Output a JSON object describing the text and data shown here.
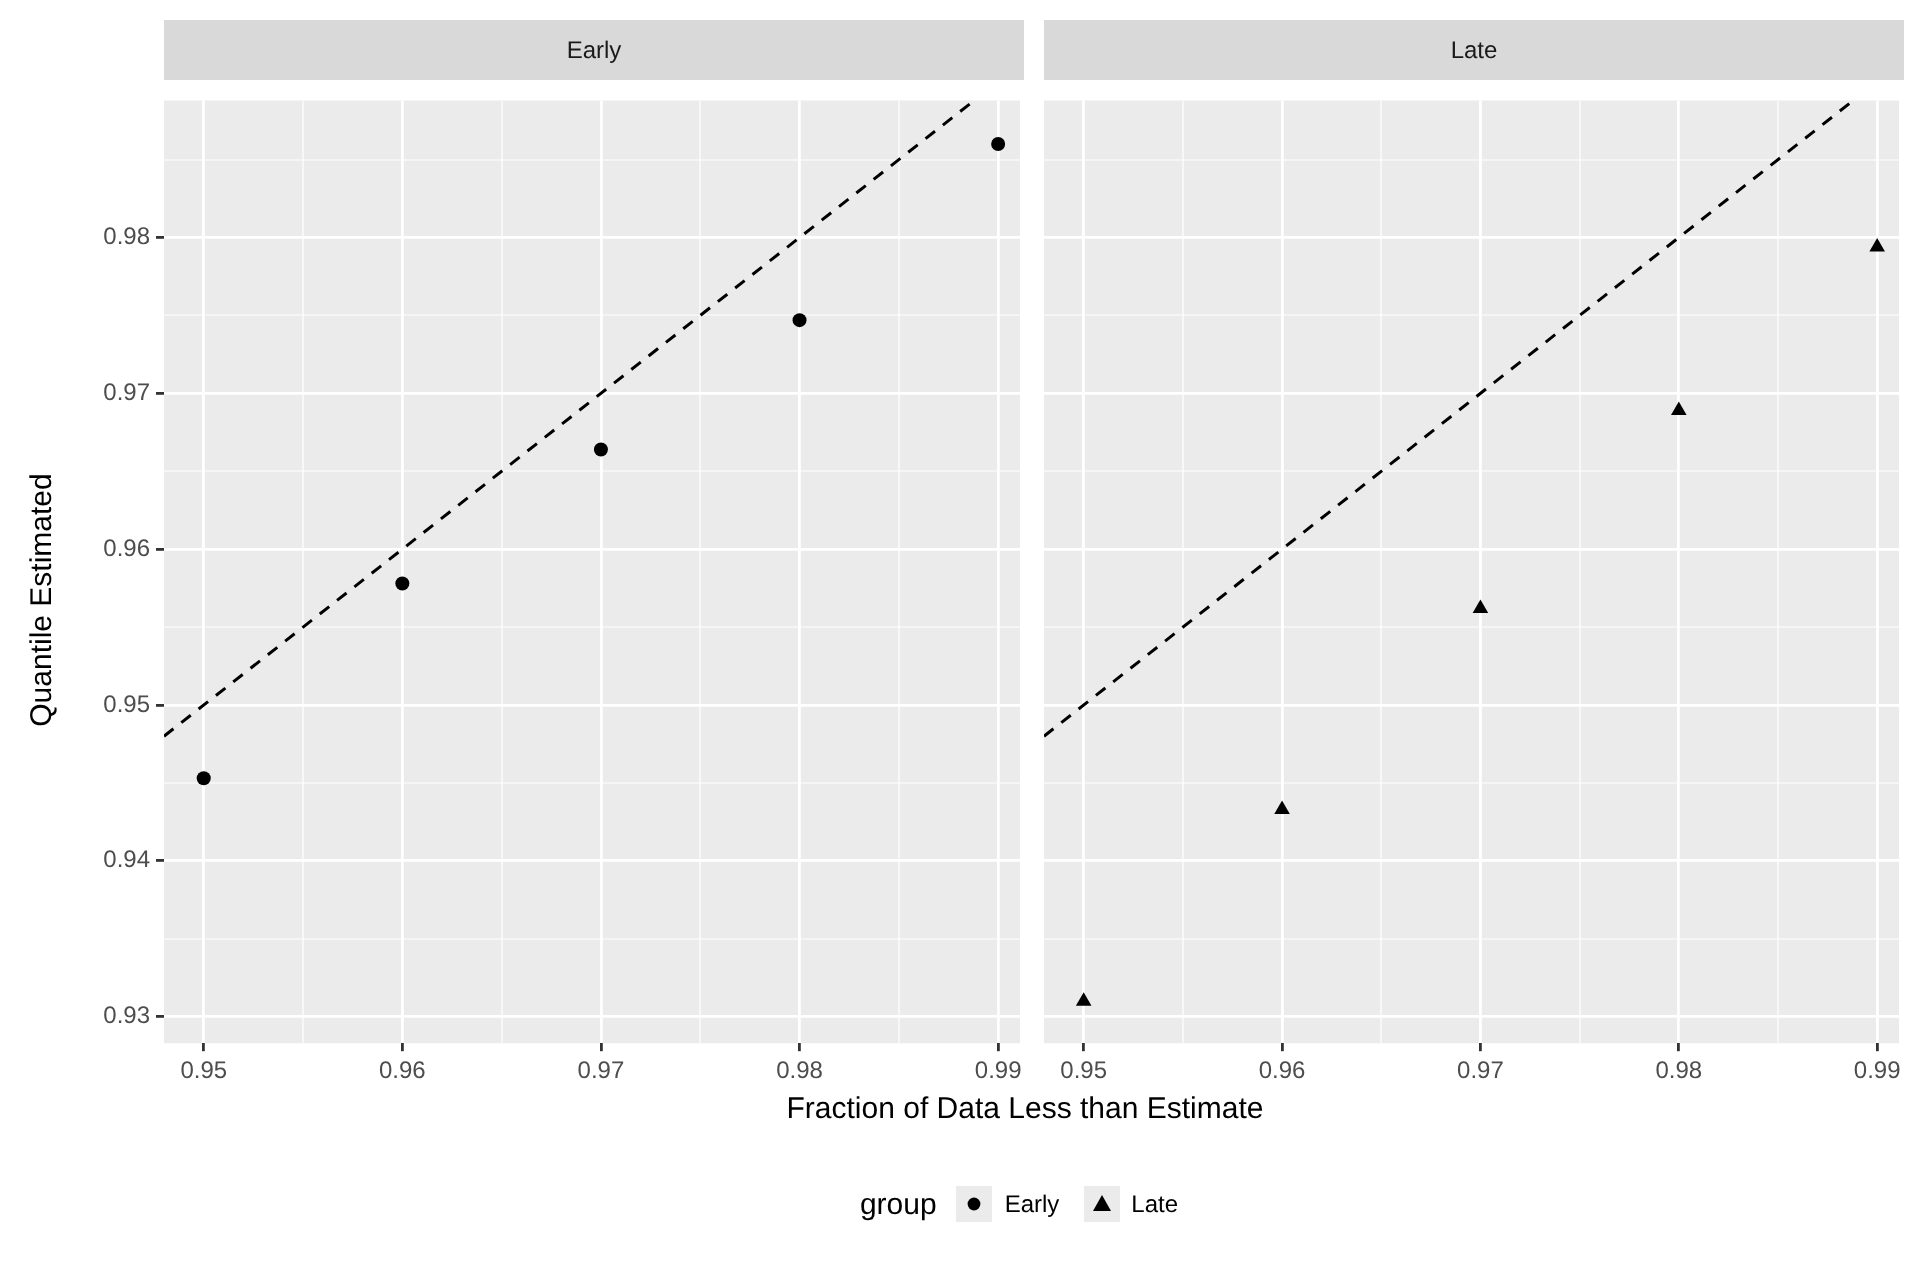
{
  "chart_data": [
    {
      "type": "scatter",
      "title": "Early",
      "xlabel": "Fraction of Data Less than Estimate",
      "ylabel": "Quantile Estimated",
      "legend": "bottom",
      "legend_title": "group",
      "grid": true,
      "xlim": [
        0.948,
        0.9911
      ],
      "ylim": [
        0.9283,
        0.9888
      ],
      "xticks": [
        0.95,
        {
          "value": 0.955,
          "label": null
        },
        0.96,
        {
          "value": 0.965,
          "label": null
        },
        0.97,
        {
          "value": 0.975,
          "label": null
        },
        0.98,
        {
          "value": 0.985,
          "label": null
        },
        0.99
      ],
      "yticks": [
        0.93,
        {
          "value": 0.935,
          "label": null
        },
        0.94,
        {
          "value": 0.945,
          "label": null
        },
        0.95,
        {
          "value": 0.955,
          "label": null
        },
        0.96,
        {
          "value": 0.965,
          "label": null
        },
        0.97,
        {
          "value": 0.975,
          "label": null
        },
        0.98,
        {
          "value": 0.985,
          "label": null
        }
      ],
      "series": [
        {
          "name": "Early",
          "type": "scatter",
          "marker": "circle",
          "color": "#000000",
          "x": [
            0.95,
            0.96,
            0.97,
            0.98,
            0.99
          ],
          "values": [
            0.9453,
            0.9578,
            0.9664,
            0.9747,
            0.986
          ]
        },
        {
          "type": "line",
          "line_style": "dashed",
          "marker": "none",
          "color": "#000000",
          "x": [
            0.948,
            0.9888
          ],
          "values": [
            0.948,
            0.9888
          ]
        }
      ]
    },
    {
      "type": "scatter",
      "title": "Late",
      "legend": "bottom",
      "grid": true,
      "tick_labels": "x",
      "xlim": [
        0.948,
        0.9911
      ],
      "ylim": [
        0.9283,
        0.9888
      ],
      "xticks": [
        0.95,
        {
          "value": 0.955,
          "label": null
        },
        0.96,
        {
          "value": 0.965,
          "label": null
        },
        0.97,
        {
          "value": 0.975,
          "label": null
        },
        0.98,
        {
          "value": 0.985,
          "label": null
        },
        0.99
      ],
      "yticks": [
        0.93,
        {
          "value": 0.935,
          "label": null
        },
        0.94,
        {
          "value": 0.945,
          "label": null
        },
        0.95,
        {
          "value": 0.955,
          "label": null
        },
        0.96,
        {
          "value": 0.965,
          "label": null
        },
        0.97,
        {
          "value": 0.975,
          "label": null
        },
        0.98,
        {
          "value": 0.985,
          "label": null
        }
      ],
      "series": [
        {
          "name": "Late",
          "type": "scatter",
          "marker": "triangle",
          "color": "#000000",
          "x": [
            0.95,
            0.96,
            0.97,
            0.98,
            0.99
          ],
          "values": [
            0.931,
            0.9433,
            0.9562,
            0.9689,
            0.9794
          ]
        },
        {
          "type": "line",
          "line_style": "dashed",
          "marker": "none",
          "color": "#000000",
          "x": [
            0.948,
            0.9888
          ],
          "values": [
            0.948,
            0.9888
          ]
        }
      ]
    }
  ]
}
